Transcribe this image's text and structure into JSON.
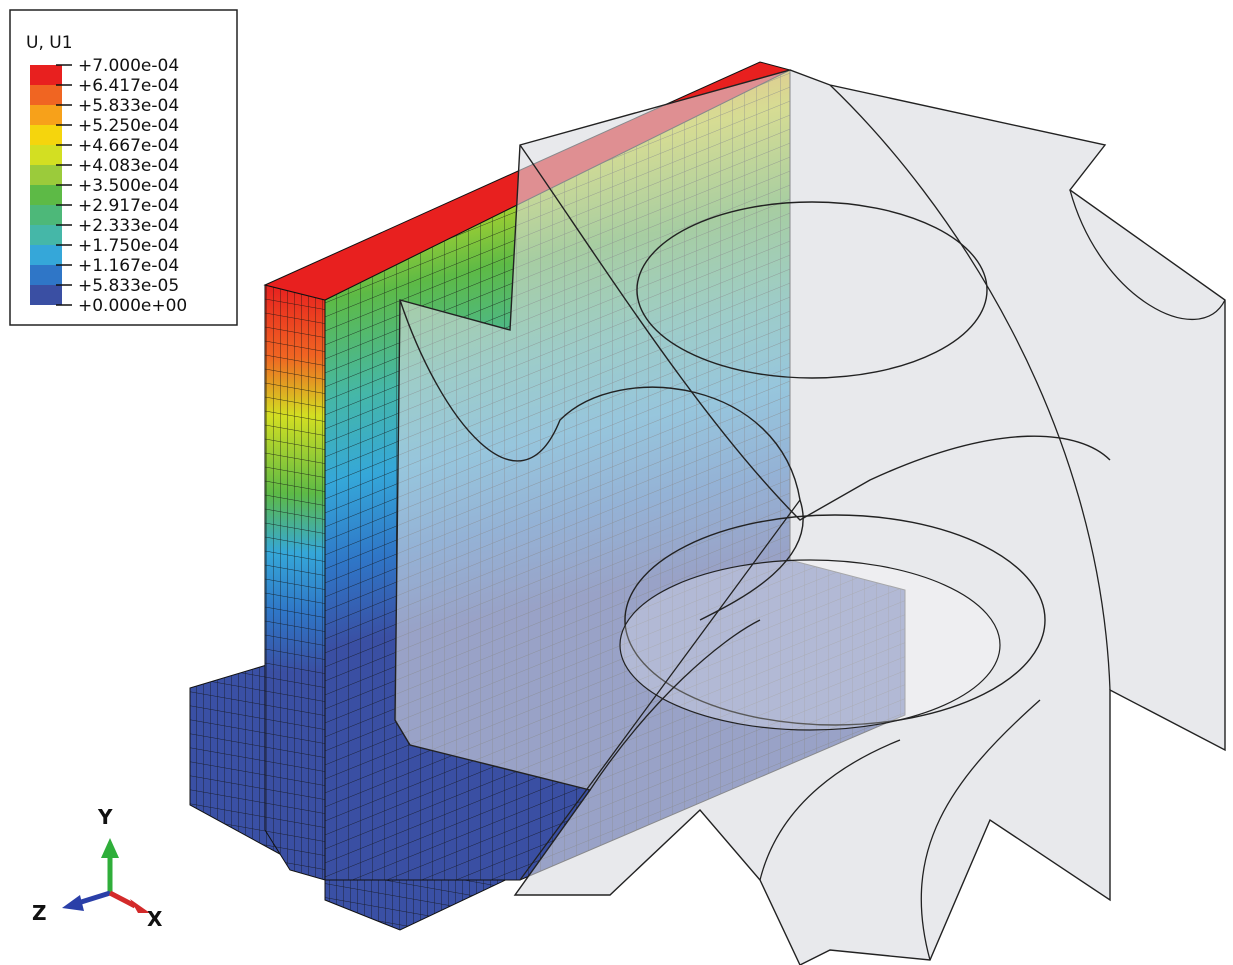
{
  "legend": {
    "title": "U, U1",
    "labels": [
      "+7.000e-04",
      "+6.417e-04",
      "+5.833e-04",
      "+5.250e-04",
      "+4.667e-04",
      "+4.083e-04",
      "+3.500e-04",
      "+2.917e-04",
      "+2.333e-04",
      "+1.750e-04",
      "+1.167e-04",
      "+5.833e-05",
      "+0.000e+00"
    ],
    "colors": [
      "#e8201f",
      "#f06522",
      "#f7a11a",
      "#f5d50d",
      "#d3df22",
      "#9bcb3b",
      "#5dba46",
      "#4db879",
      "#45b7a8",
      "#35a7d9",
      "#2f76c7",
      "#3a4fa3"
    ]
  },
  "triad": {
    "y": "Y",
    "z": "Z",
    "x": "X"
  }
}
